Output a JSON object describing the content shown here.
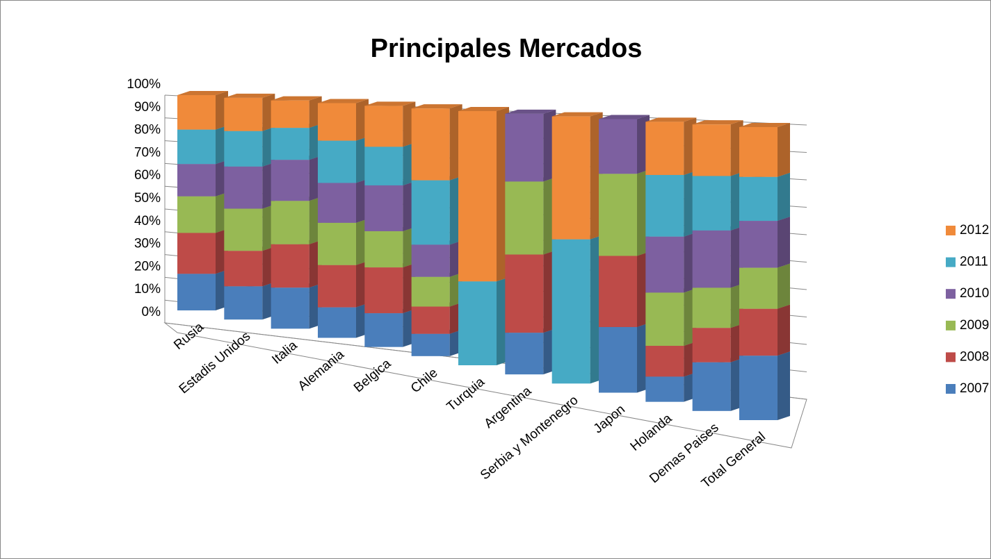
{
  "chart_data": {
    "type": "bar",
    "stacked": true,
    "title": "Principales Mercados",
    "categories": [
      "Rusia",
      "Estadis Unidos",
      "Italia",
      "Alemania",
      "Belgica",
      "Chile",
      "Turquia",
      "Argentina",
      "Serbia y Montenegro",
      "Japon",
      "Holanda",
      "Demas Paises",
      "Total General"
    ],
    "series": [
      {
        "name": "2007",
        "color": "#4a7ebb",
        "values": [
          17,
          15,
          18,
          13,
          14,
          9,
          0,
          16,
          0,
          24,
          9,
          17,
          22
        ]
      },
      {
        "name": "2008",
        "color": "#be4b48",
        "values": [
          19,
          16,
          19,
          18,
          19,
          11,
          0,
          30,
          0,
          26,
          11,
          12,
          16
        ]
      },
      {
        "name": "2009",
        "color": "#98b954",
        "values": [
          17,
          19,
          19,
          18,
          15,
          12,
          0,
          28,
          0,
          30,
          19,
          14,
          14
        ]
      },
      {
        "name": "2010",
        "color": "#7d60a0",
        "values": [
          15,
          19,
          18,
          17,
          19,
          13,
          0,
          26,
          0,
          20,
          20,
          20,
          16
        ]
      },
      {
        "name": "2011",
        "color": "#46aac5",
        "values": [
          16,
          16,
          14,
          18,
          16,
          26,
          33,
          0,
          54,
          0,
          22,
          19,
          15
        ]
      },
      {
        "name": "2012",
        "color": "#f08a3a",
        "values": [
          16,
          15,
          12,
          16,
          17,
          29,
          67,
          0,
          46,
          0,
          19,
          18,
          17
        ]
      }
    ],
    "ylim": [
      0,
      100
    ],
    "yticks": [
      {
        "value": 0,
        "label": "0%"
      },
      {
        "value": 10,
        "label": "10%"
      },
      {
        "value": 20,
        "label": "20%"
      },
      {
        "value": 30,
        "label": "30%"
      },
      {
        "value": 40,
        "label": "40%"
      },
      {
        "value": 50,
        "label": "50%"
      },
      {
        "value": 60,
        "label": "60%"
      },
      {
        "value": 70,
        "label": "70%"
      },
      {
        "value": 80,
        "label": "80%"
      },
      {
        "value": 90,
        "label": "90%"
      },
      {
        "value": 100,
        "label": "100%"
      }
    ],
    "grid": true,
    "legend": "right"
  }
}
